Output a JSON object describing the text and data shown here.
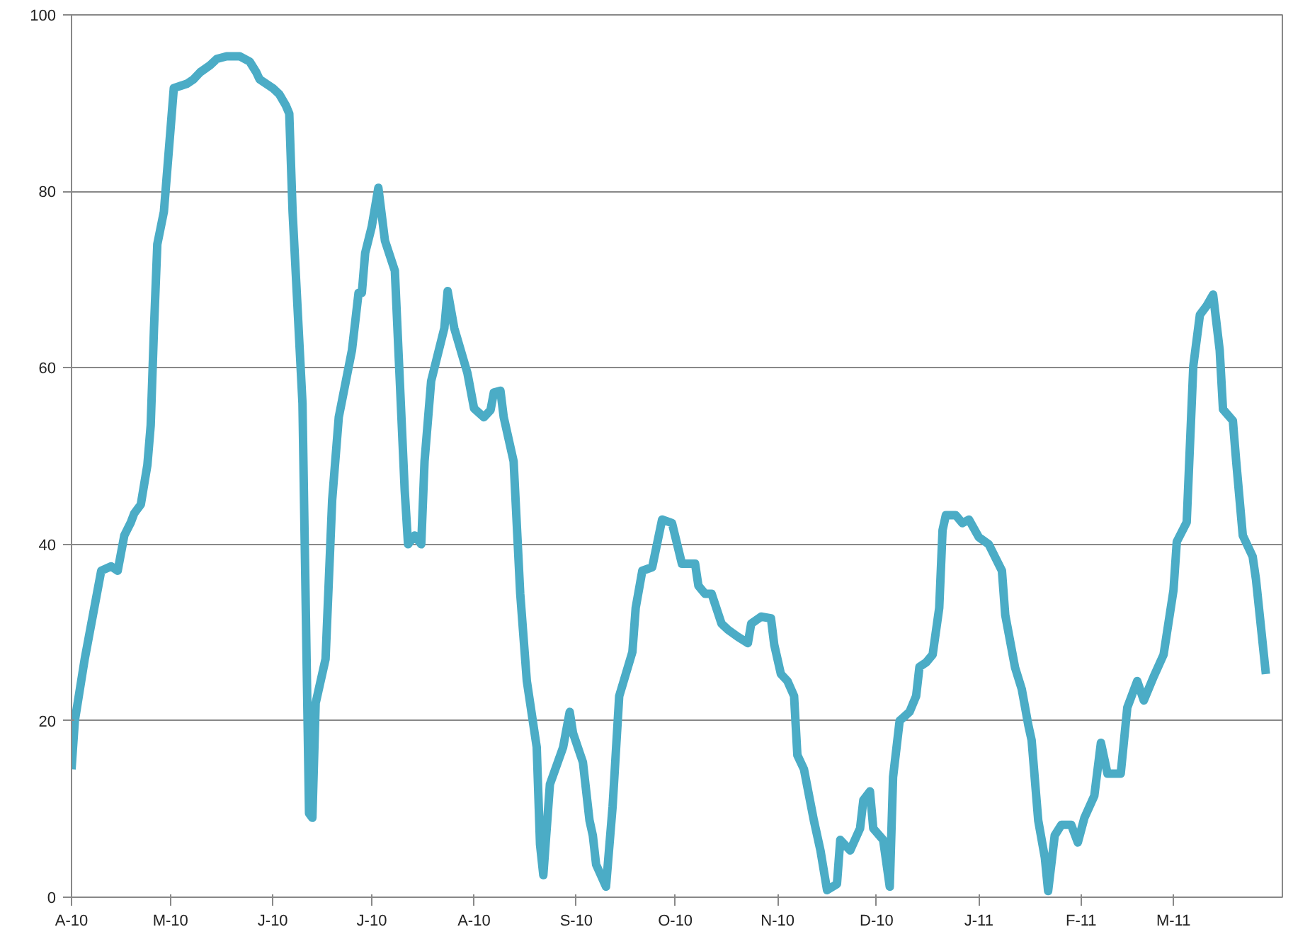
{
  "chart_data": {
    "type": "line",
    "series": [
      {
        "color": "#4bacc6",
        "x": [
          "2010-04-01",
          "2010-04-02",
          "2010-04-05",
          "2010-04-08",
          "2010-04-10",
          "2010-04-13",
          "2010-04-15",
          "2010-04-17",
          "2010-04-19",
          "2010-04-20",
          "2010-04-22",
          "2010-04-24",
          "2010-04-25",
          "2010-04-26",
          "2010-04-27",
          "2010-04-29",
          "2010-05-01",
          "2010-05-02",
          "2010-05-06",
          "2010-05-08",
          "2010-05-10",
          "2010-05-13",
          "2010-05-15",
          "2010-05-18",
          "2010-05-22",
          "2010-05-25",
          "2010-05-27",
          "2010-05-28",
          "2010-06-01",
          "2010-06-03",
          "2010-06-05",
          "2010-06-06",
          "2010-06-07",
          "2010-06-10",
          "2010-06-12",
          "2010-06-13",
          "2010-06-14",
          "2010-06-17",
          "2010-06-19",
          "2010-06-21",
          "2010-06-25",
          "2010-06-27",
          "2010-06-28",
          "2010-06-29",
          "2010-07-01",
          "2010-07-03",
          "2010-07-05",
          "2010-07-08",
          "2010-07-11",
          "2010-07-12",
          "2010-07-14",
          "2010-07-16",
          "2010-07-17",
          "2010-07-19",
          "2010-07-23",
          "2010-07-24",
          "2010-07-26",
          "2010-07-30",
          "2010-08-01",
          "2010-08-04",
          "2010-08-06",
          "2010-08-07",
          "2010-08-09",
          "2010-08-10",
          "2010-08-13",
          "2010-08-15",
          "2010-08-17",
          "2010-08-20",
          "2010-08-21",
          "2010-08-22",
          "2010-08-24",
          "2010-08-28",
          "2010-08-30",
          "2010-08-31",
          "2010-09-03",
          "2010-09-05",
          "2010-09-06",
          "2010-09-07",
          "2010-09-10",
          "2010-09-12",
          "2010-09-14",
          "2010-09-18",
          "2010-09-19",
          "2010-09-21",
          "2010-09-24",
          "2010-09-27",
          "2010-09-30",
          "2010-10-03",
          "2010-10-07",
          "2010-10-08",
          "2010-10-10",
          "2010-10-12",
          "2010-10-15",
          "2010-10-17",
          "2010-10-20",
          "2010-10-23",
          "2010-10-24",
          "2010-10-27",
          "2010-10-30",
          "2010-10-31",
          "2010-11-02",
          "2010-11-04",
          "2010-11-06",
          "2010-11-07",
          "2010-11-09",
          "2010-11-12",
          "2010-11-14",
          "2010-11-16",
          "2010-11-19",
          "2010-11-20",
          "2010-11-23",
          "2010-11-26",
          "2010-11-27",
          "2010-11-29",
          "2010-11-30",
          "2010-12-03",
          "2010-12-05",
          "2010-12-06",
          "2010-12-08",
          "2010-12-11",
          "2010-12-13",
          "2010-12-14",
          "2010-12-16",
          "2010-12-18",
          "2010-12-20",
          "2010-12-21",
          "2010-12-22",
          "2010-12-25",
          "2010-12-27",
          "2010-12-29",
          "2011-01-01",
          "2011-01-04",
          "2011-01-08",
          "2011-01-09",
          "2011-01-12",
          "2011-01-14",
          "2011-01-16",
          "2011-01-17",
          "2011-01-19",
          "2011-01-21",
          "2011-01-22",
          "2011-01-24",
          "2011-01-26",
          "2011-01-29",
          "2011-01-31",
          "2011-02-02",
          "2011-02-05",
          "2011-02-07",
          "2011-02-09",
          "2011-02-13",
          "2011-02-15",
          "2011-02-18",
          "2011-02-20",
          "2011-02-23",
          "2011-02-26",
          "2011-03-01",
          "2011-03-02",
          "2011-03-05",
          "2011-03-07",
          "2011-03-09",
          "2011-03-11",
          "2011-03-13",
          "2011-03-15",
          "2011-03-16",
          "2011-03-19",
          "2011-03-20",
          "2011-03-22",
          "2011-03-25",
          "2011-03-26",
          "2011-03-29"
        ],
        "values": [
          14.5,
          20,
          27,
          33,
          37,
          37.5,
          37,
          41,
          42.5,
          43.5,
          44.5,
          49,
          53.5,
          64.5,
          74,
          77.7,
          87,
          91.7,
          92.2,
          92.7,
          93.5,
          94.3,
          95,
          95.3,
          95.3,
          94.7,
          93.5,
          92.7,
          91.7,
          91,
          89.7,
          88.8,
          77.7,
          56,
          9.5,
          9,
          22,
          27,
          45,
          54.4,
          62,
          68.5,
          68.5,
          73,
          76,
          80.4,
          74.4,
          71,
          46,
          40,
          41,
          40,
          49.4,
          58.5,
          64.5,
          68.7,
          64.5,
          59.4,
          55.4,
          54.4,
          55.2,
          57.2,
          57.4,
          54.4,
          49.4,
          34.4,
          24.5,
          17,
          6,
          2.5,
          12.8,
          17,
          21,
          18.6,
          15.3,
          8.7,
          7,
          3.7,
          1.2,
          10.3,
          22.8,
          27.8,
          32.8,
          37,
          37.4,
          42.8,
          42.4,
          37.8,
          37.8,
          35.3,
          34.4,
          34.4,
          31,
          30.3,
          29.5,
          28.8,
          31,
          31.8,
          31.6,
          28.6,
          25.3,
          24.5,
          22.8,
          16.1,
          14.5,
          8.7,
          5.3,
          0.8,
          1.5,
          6.5,
          5.3,
          7.8,
          11,
          12,
          7.8,
          6.5,
          1.2,
          13.6,
          20,
          21,
          22.8,
          26.1,
          26.6,
          27.5,
          32.8,
          41.6,
          43.3,
          43.3,
          42.4,
          42.8,
          40.8,
          40,
          37,
          32,
          26,
          23.6,
          19.5,
          17.8,
          8.7,
          4.5,
          0.7,
          7,
          8.2,
          8.2,
          6.2,
          9,
          11.5,
          17.5,
          14,
          14,
          21.5,
          24.5,
          22.3,
          25,
          27.5,
          34.8,
          40.3,
          42.5,
          60.2,
          66,
          67,
          68.3,
          62,
          55.3,
          54,
          49.4,
          41,
          38.6,
          36,
          25.3
        ]
      }
    ],
    "xlim": [
      "2010-04-01",
      "2011-04-03"
    ],
    "xticks": [
      {
        "value": "2010-04-01",
        "label": "A-10"
      },
      {
        "value": "2010-05-01",
        "label": "M-10"
      },
      {
        "value": "2010-06-01",
        "label": "J-10"
      },
      {
        "value": "2010-07-01",
        "label": "J-10"
      },
      {
        "value": "2010-08-01",
        "label": "A-10"
      },
      {
        "value": "2010-09-01",
        "label": "S-10"
      },
      {
        "value": "2010-10-01",
        "label": "O-10"
      },
      {
        "value": "2010-11-01",
        "label": "N-10"
      },
      {
        "value": "2010-12-01",
        "label": "D-10"
      },
      {
        "value": "2011-01-01",
        "label": "J-11"
      },
      {
        "value": "2011-02-01",
        "label": "F-11"
      },
      {
        "value": "2011-03-01",
        "label": "M-11"
      }
    ],
    "ylim": [
      0,
      100
    ],
    "yticks": [
      0,
      20,
      40,
      60,
      80,
      100
    ],
    "grid": "y",
    "marker": "none",
    "line_style": "solid"
  }
}
